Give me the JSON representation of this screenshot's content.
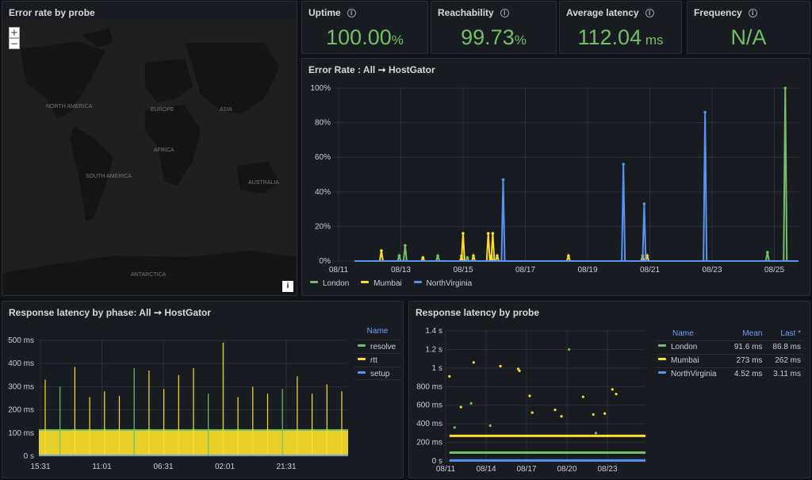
{
  "map_panel": {
    "title": "Error rate by probe",
    "zoom_in": "+",
    "zoom_out": "−",
    "attribution": "i",
    "labels": [
      "NORTH AMERICA",
      "EUROPE",
      "ASIA",
      "AFRICA",
      "SOUTH AMERICA",
      "AUSTRALIA",
      "ANTARCTICA"
    ]
  },
  "stats": [
    {
      "title": "Uptime",
      "value": "100.00",
      "unit": "%"
    },
    {
      "title": "Reachability",
      "value": "99.73",
      "unit": "%"
    },
    {
      "title": "Average latency",
      "value": "112.04",
      "unit": " ms"
    },
    {
      "title": "Frequency",
      "value": "N/A",
      "unit": ""
    }
  ],
  "colors": {
    "green": "#73bf69",
    "yellow": "#fade2a",
    "blue": "#5794f2",
    "grid": "#2c3036",
    "text": "#ccccdc"
  },
  "chart_data": [
    {
      "type": "line",
      "title": "Error Rate : All ➞ HostGator",
      "y_ticks": [
        "0%",
        "20%",
        "40%",
        "60%",
        "80%",
        "100%"
      ],
      "x_ticks": [
        "08/11",
        "08/13",
        "08/15",
        "08/17",
        "08/19",
        "08/21",
        "08/23",
        "08/25"
      ],
      "ylim": [
        0,
        100
      ],
      "xlim": [
        0,
        15.7
      ],
      "series": [
        {
          "name": "London",
          "color": "#73bf69",
          "spikes": [
            [
              2.2,
              3
            ],
            [
              2.4,
              9
            ],
            [
              3.5,
              3
            ],
            [
              15.2,
              100
            ],
            [
              14.6,
              5
            ],
            [
              4.5,
              2
            ]
          ]
        },
        {
          "name": "Mumbai",
          "color": "#fade2a",
          "spikes": [
            [
              1.6,
              6
            ],
            [
              3.0,
              2
            ],
            [
              4.3,
              3
            ],
            [
              4.35,
              16
            ],
            [
              4.7,
              3
            ],
            [
              5.2,
              16
            ],
            [
              5.35,
              16
            ],
            [
              5.3,
              3
            ],
            [
              5.5,
              3
            ],
            [
              7.9,
              3
            ],
            [
              10.4,
              3
            ],
            [
              10.55,
              3
            ]
          ]
        },
        {
          "name": "NorthVirginia",
          "color": "#5794f2",
          "spikes": [
            [
              5.7,
              47
            ],
            [
              9.75,
              56
            ],
            [
              10.45,
              33
            ],
            [
              12.5,
              86
            ]
          ]
        }
      ]
    },
    {
      "type": "bar",
      "title": "Response latency by phase: All ➞ HostGator",
      "y_ticks": [
        "0 s",
        "100 ms",
        "200 ms",
        "300 ms",
        "400 ms",
        "500 ms"
      ],
      "x_ticks": [
        "15:31",
        "11:01",
        "06:31",
        "02:01",
        "21:31"
      ],
      "ylim": [
        0,
        500
      ],
      "legend_header": "Name",
      "series": [
        {
          "name": "resolve",
          "color": "#73bf69"
        },
        {
          "name": "rtt",
          "color": "#fade2a",
          "base": 113,
          "spikes": [
            330,
            300,
            385,
            255,
            280,
            260,
            380,
            370,
            290,
            350,
            380,
            270,
            490,
            255,
            300,
            270,
            290,
            345,
            270,
            310,
            280
          ]
        },
        {
          "name": "setup",
          "color": "#5794f2"
        }
      ]
    },
    {
      "type": "scatter",
      "title": "Response latency by probe",
      "y_ticks": [
        "0 s",
        "200 ms",
        "400 ms",
        "600 ms",
        "800 ms",
        "1 s",
        "1.2 s",
        "1.4 s"
      ],
      "x_ticks": [
        "08/11",
        "08/14",
        "08/17",
        "08/20",
        "08/23"
      ],
      "ylim": [
        0,
        1.4
      ],
      "xlim": [
        0,
        15.7
      ],
      "table": {
        "headers": [
          "Name",
          "Mean",
          "Last *"
        ],
        "rows": [
          {
            "name": "London",
            "mean": "91.6 ms",
            "last": "86.8 ms",
            "color": "#73bf69"
          },
          {
            "name": "Mumbai",
            "mean": "273 ms",
            "last": "262 ms",
            "color": "#fade2a"
          },
          {
            "name": "NorthVirginia",
            "mean": "4.52 ms",
            "last": "3.11 ms",
            "color": "#5794f2"
          }
        ]
      },
      "outliers_mumbai": [
        [
          0.3,
          0.91
        ],
        [
          1.2,
          0.58
        ],
        [
          2.2,
          1.06
        ],
        [
          4.3,
          1.02
        ],
        [
          5.7,
          0.99
        ],
        [
          5.8,
          0.97
        ],
        [
          6.6,
          0.7
        ],
        [
          6.8,
          0.52
        ],
        [
          8.6,
          0.55
        ],
        [
          9.1,
          0.48
        ],
        [
          10.8,
          0.69
        ],
        [
          11.6,
          0.5
        ],
        [
          12.5,
          0.51
        ],
        [
          13.1,
          0.77
        ],
        [
          13.4,
          0.72
        ]
      ],
      "outliers_london": [
        [
          0.7,
          0.36
        ],
        [
          2.0,
          0.62
        ],
        [
          3.5,
          0.38
        ],
        [
          9.7,
          1.2
        ],
        [
          11.8,
          0.3
        ]
      ]
    }
  ]
}
